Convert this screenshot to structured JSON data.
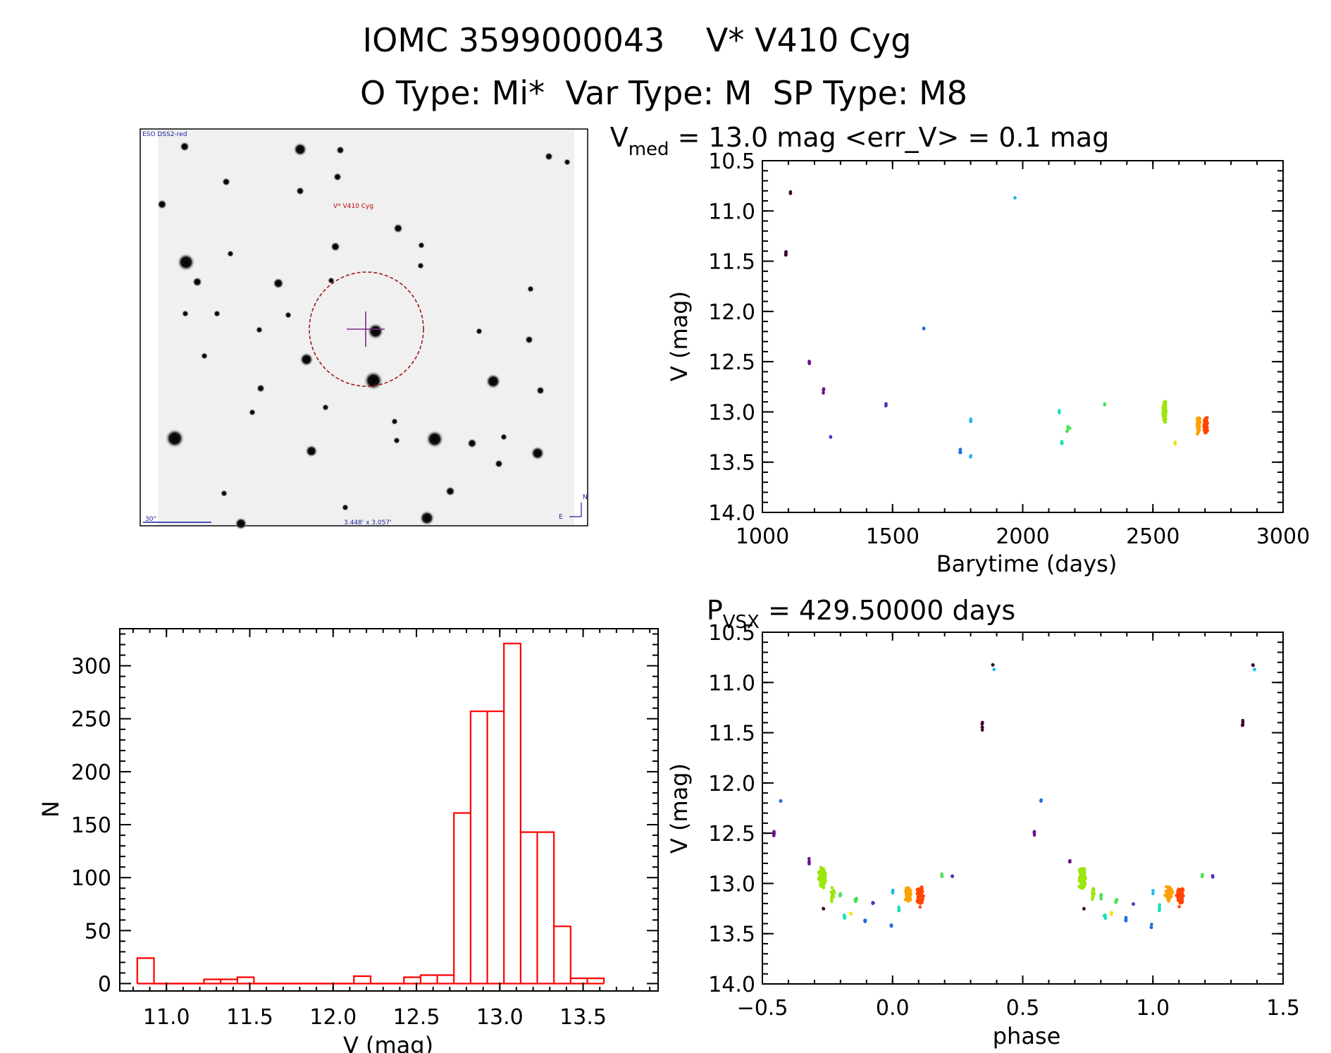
{
  "header": {
    "line1": "IOMC 3599000043    V* V410 Cyg",
    "line2": "O Type: Mi*  Var Type: M  SP Type: M8"
  },
  "image_panel": {
    "survey_label": "ESO DSS2-red",
    "target_label": "V* V410 Cyg",
    "scale_label": "30\"",
    "size_label": "3.448' x 3.057'",
    "north_label": "N",
    "east_label": "E"
  },
  "lightcurve_title": {
    "main": "V",
    "sub": "med",
    "rest": " = 13.0 mag <err_V> = 0.1 mag"
  },
  "phase_title": {
    "main": "P",
    "sub": "VSX",
    "rest": " = 429.50000 days"
  },
  "colors": {
    "hist": "#ff0000",
    "epochs": [
      "#3a0030",
      "#6a0f8e",
      "#4a36c4",
      "#1e6fe0",
      "#1fb6f0",
      "#18e0b4",
      "#4de05a",
      "#9be60e",
      "#f0e21a",
      "#ffa000",
      "#ff4500",
      "#e61414"
    ]
  },
  "chart_data": [
    {
      "id": "lightcurve",
      "type": "scatter",
      "title": "V_med = 13.0 mag <err_V> = 0.1 mag",
      "xlabel": "Barytime (days)",
      "ylabel": "V (mag)",
      "xlim": [
        1000,
        3000
      ],
      "ylim": [
        14.0,
        10.5
      ],
      "y_inverted": true,
      "xticks": [
        1000,
        1500,
        2000,
        2500,
        3000
      ],
      "yticks": [
        10.5,
        11.0,
        11.5,
        12.0,
        12.5,
        13.0,
        13.5,
        14.0
      ],
      "clusters": [
        {
          "x": 1090,
          "y": 11.42,
          "n": 6,
          "xs": 2,
          "ys": 0.09,
          "c": 0
        },
        {
          "x": 1108,
          "y": 10.82,
          "n": 3,
          "xs": 1,
          "ys": 0.02,
          "c": 0
        },
        {
          "x": 1180,
          "y": 12.5,
          "n": 4,
          "xs": 2,
          "ys": 0.07,
          "c": 1
        },
        {
          "x": 1235,
          "y": 12.78,
          "n": 4,
          "xs": 2,
          "ys": 0.05,
          "c": 1
        },
        {
          "x": 1262,
          "y": 13.25,
          "n": 2,
          "xs": 1,
          "ys": 0.01,
          "c": 2
        },
        {
          "x": 1475,
          "y": 12.93,
          "n": 3,
          "xs": 1,
          "ys": 0.04,
          "c": 2
        },
        {
          "x": 1620,
          "y": 12.17,
          "n": 3,
          "xs": 1,
          "ys": 0.03,
          "c": 3
        },
        {
          "x": 1760,
          "y": 13.38,
          "n": 4,
          "xs": 3,
          "ys": 0.07,
          "c": 3
        },
        {
          "x": 1800,
          "y": 13.08,
          "n": 3,
          "xs": 2,
          "ys": 0.05,
          "c": 4
        },
        {
          "x": 1800,
          "y": 13.45,
          "n": 3,
          "xs": 2,
          "ys": 0.04,
          "c": 4
        },
        {
          "x": 1970,
          "y": 10.87,
          "n": 2,
          "xs": 1,
          "ys": 0.01,
          "c": 4
        },
        {
          "x": 2140,
          "y": 13.0,
          "n": 2,
          "xs": 1,
          "ys": 0.02,
          "c": 5
        },
        {
          "x": 2150,
          "y": 13.3,
          "n": 4,
          "xs": 2,
          "ys": 0.06,
          "c": 5
        },
        {
          "x": 2175,
          "y": 13.18,
          "n": 7,
          "xs": 10,
          "ys": 0.06,
          "c": 6
        },
        {
          "x": 2315,
          "y": 12.92,
          "n": 3,
          "xs": 1,
          "ys": 0.02,
          "c": 6
        },
        {
          "x": 2545,
          "y": 13.0,
          "n": 140,
          "xs": 8,
          "ys": 0.15,
          "c": 7
        },
        {
          "x": 2585,
          "y": 13.32,
          "n": 4,
          "xs": 2,
          "ys": 0.03,
          "c": 8
        },
        {
          "x": 2675,
          "y": 13.12,
          "n": 60,
          "xs": 10,
          "ys": 0.14,
          "c": 9
        },
        {
          "x": 2702,
          "y": 13.13,
          "n": 110,
          "xs": 10,
          "ys": 0.13,
          "c": 10
        }
      ]
    },
    {
      "id": "histogram",
      "type": "bar",
      "xlabel": "V (mag)",
      "ylabel": "N",
      "xlim": [
        10.72,
        13.95
      ],
      "ylim": [
        -7,
        335
      ],
      "xticks": [
        11.0,
        11.5,
        12.0,
        12.5,
        13.0,
        13.5
      ],
      "xticks_minor": 0.1,
      "yticks": [
        0,
        50,
        100,
        150,
        200,
        250,
        300
      ],
      "bins": [
        {
          "x0": 10.825,
          "x1": 10.925,
          "n": 24
        },
        {
          "x0": 10.925,
          "x1": 11.025,
          "n": 0
        },
        {
          "x0": 11.025,
          "x1": 11.125,
          "n": 0
        },
        {
          "x0": 11.125,
          "x1": 11.225,
          "n": 0
        },
        {
          "x0": 11.225,
          "x1": 11.325,
          "n": 4
        },
        {
          "x0": 11.325,
          "x1": 11.425,
          "n": 4
        },
        {
          "x0": 11.425,
          "x1": 11.525,
          "n": 6
        },
        {
          "x0": 11.525,
          "x1": 11.625,
          "n": 0
        },
        {
          "x0": 11.625,
          "x1": 11.725,
          "n": 0
        },
        {
          "x0": 11.725,
          "x1": 11.825,
          "n": 0
        },
        {
          "x0": 11.825,
          "x1": 11.925,
          "n": 0
        },
        {
          "x0": 11.925,
          "x1": 12.025,
          "n": 0
        },
        {
          "x0": 12.025,
          "x1": 12.125,
          "n": 0
        },
        {
          "x0": 12.125,
          "x1": 12.225,
          "n": 7
        },
        {
          "x0": 12.225,
          "x1": 12.325,
          "n": 0
        },
        {
          "x0": 12.325,
          "x1": 12.425,
          "n": 0
        },
        {
          "x0": 12.425,
          "x1": 12.525,
          "n": 6
        },
        {
          "x0": 12.525,
          "x1": 12.625,
          "n": 8
        },
        {
          "x0": 12.625,
          "x1": 12.725,
          "n": 8
        },
        {
          "x0": 12.725,
          "x1": 12.825,
          "n": 161
        },
        {
          "x0": 12.825,
          "x1": 12.925,
          "n": 257
        },
        {
          "x0": 12.925,
          "x1": 13.025,
          "n": 257
        },
        {
          "x0": 13.025,
          "x1": 13.125,
          "n": 321
        },
        {
          "x0": 13.125,
          "x1": 13.225,
          "n": 143
        },
        {
          "x0": 13.225,
          "x1": 13.325,
          "n": 143
        },
        {
          "x0": 13.325,
          "x1": 13.425,
          "n": 54
        },
        {
          "x0": 13.425,
          "x1": 13.525,
          "n": 5
        },
        {
          "x0": 13.525,
          "x1": 13.625,
          "n": 5
        }
      ]
    },
    {
      "id": "phased",
      "type": "scatter",
      "title": "P_VSX = 429.50000 days",
      "xlabel": "phase",
      "ylabel": "V (mag)",
      "xlim": [
        -0.5,
        1.5
      ],
      "ylim": [
        14.0,
        10.5
      ],
      "y_inverted": true,
      "xticks": [
        -0.5,
        0.0,
        0.5,
        1.0,
        1.5
      ],
      "yticks": [
        10.5,
        11.0,
        11.5,
        12.0,
        12.5,
        13.0,
        13.5,
        14.0
      ],
      "repeat_offset": 1.0,
      "clusters": [
        {
          "x": -0.455,
          "y": 12.5,
          "n": 4,
          "xs": 0.002,
          "ys": 0.07,
          "c": 1
        },
        {
          "x": -0.43,
          "y": 12.17,
          "n": 3,
          "xs": 0.002,
          "ys": 0.03,
          "c": 3
        },
        {
          "x": -0.32,
          "y": 12.78,
          "n": 4,
          "xs": 0.002,
          "ys": 0.05,
          "c": 1
        },
        {
          "x": -0.27,
          "y": 12.95,
          "n": 140,
          "xs": 0.018,
          "ys": 0.17,
          "c": 7
        },
        {
          "x": -0.265,
          "y": 13.25,
          "n": 2,
          "xs": 0.002,
          "ys": 0.01,
          "c": 0
        },
        {
          "x": -0.23,
          "y": 13.1,
          "n": 15,
          "xs": 0.01,
          "ys": 0.16,
          "c": 7
        },
        {
          "x": -0.2,
          "y": 13.12,
          "n": 4,
          "xs": 0.003,
          "ys": 0.05,
          "c": 6
        },
        {
          "x": -0.185,
          "y": 13.33,
          "n": 4,
          "xs": 0.005,
          "ys": 0.05,
          "c": 5
        },
        {
          "x": -0.16,
          "y": 13.3,
          "n": 3,
          "xs": 0.004,
          "ys": 0.03,
          "c": 8
        },
        {
          "x": -0.14,
          "y": 13.17,
          "n": 6,
          "xs": 0.01,
          "ys": 0.05,
          "c": 6
        },
        {
          "x": -0.105,
          "y": 13.36,
          "n": 4,
          "xs": 0.003,
          "ys": 0.06,
          "c": 3
        },
        {
          "x": -0.075,
          "y": 13.2,
          "n": 3,
          "xs": 0.003,
          "ys": 0.03,
          "c": 2
        },
        {
          "x": -0.005,
          "y": 13.42,
          "n": 3,
          "xs": 0.003,
          "ys": 0.04,
          "c": 3
        },
        {
          "x": 0.0,
          "y": 13.08,
          "n": 3,
          "xs": 0.003,
          "ys": 0.04,
          "c": 4
        },
        {
          "x": 0.025,
          "y": 13.25,
          "n": 4,
          "xs": 0.004,
          "ys": 0.08,
          "c": 5
        },
        {
          "x": 0.06,
          "y": 13.1,
          "n": 65,
          "xs": 0.018,
          "ys": 0.14,
          "c": 9
        },
        {
          "x": 0.105,
          "y": 13.13,
          "n": 110,
          "xs": 0.018,
          "ys": 0.13,
          "c": 10
        },
        {
          "x": 0.19,
          "y": 12.92,
          "n": 3,
          "xs": 0.002,
          "ys": 0.02,
          "c": 6
        },
        {
          "x": 0.23,
          "y": 12.93,
          "n": 3,
          "xs": 0.002,
          "ys": 0.03,
          "c": 2
        },
        {
          "x": 0.345,
          "y": 11.42,
          "n": 6,
          "xs": 0.002,
          "ys": 0.08,
          "c": 0
        },
        {
          "x": 0.385,
          "y": 10.83,
          "n": 3,
          "xs": 0.002,
          "ys": 0.02,
          "c": 0
        },
        {
          "x": 0.39,
          "y": 10.87,
          "n": 2,
          "xs": 0.002,
          "ys": 0.01,
          "c": 4
        }
      ]
    }
  ]
}
